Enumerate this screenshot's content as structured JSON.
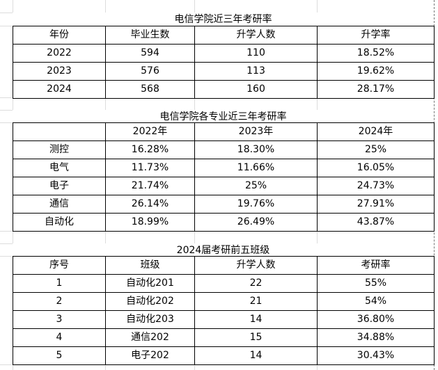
{
  "tables": [
    {
      "title": "电信学院近三年考研率",
      "header": [
        "年份",
        "毕业生数",
        "升学人数",
        "升学率"
      ],
      "rows": [
        [
          "2022",
          "594",
          "110",
          "18.52%"
        ],
        [
          "2023",
          "576",
          "113",
          "19.62%"
        ],
        [
          "2024",
          "568",
          "160",
          "28.17%"
        ]
      ]
    },
    {
      "title": "电信学院各专业近三年考研率",
      "header": [
        "",
        "2022年",
        "2023年",
        "2024年"
      ],
      "rows": [
        [
          "测控",
          "16.28%",
          "18.30%",
          "25%"
        ],
        [
          "电气",
          "11.73%",
          "11.66%",
          "16.05%"
        ],
        [
          "电子",
          "21.74%",
          "25%",
          "24.73%"
        ],
        [
          "通信",
          "26.14%",
          "19.76%",
          "27.91%"
        ],
        [
          "自动化",
          "18.99%",
          "26.49%",
          "43.87%"
        ]
      ]
    },
    {
      "title": "2024届考研前五班级",
      "header": [
        "序号",
        "班级",
        "升学人数",
        "考研率"
      ],
      "rows": [
        [
          "1",
          "自动化201",
          "22",
          "55%"
        ],
        [
          "2",
          "自动化202",
          "21",
          "54%"
        ],
        [
          "3",
          "自动化203",
          "14",
          "36.80%"
        ],
        [
          "4",
          "通信202",
          "15",
          "34.88%"
        ],
        [
          "5",
          "电子202",
          "14",
          "30.43%"
        ]
      ]
    }
  ]
}
